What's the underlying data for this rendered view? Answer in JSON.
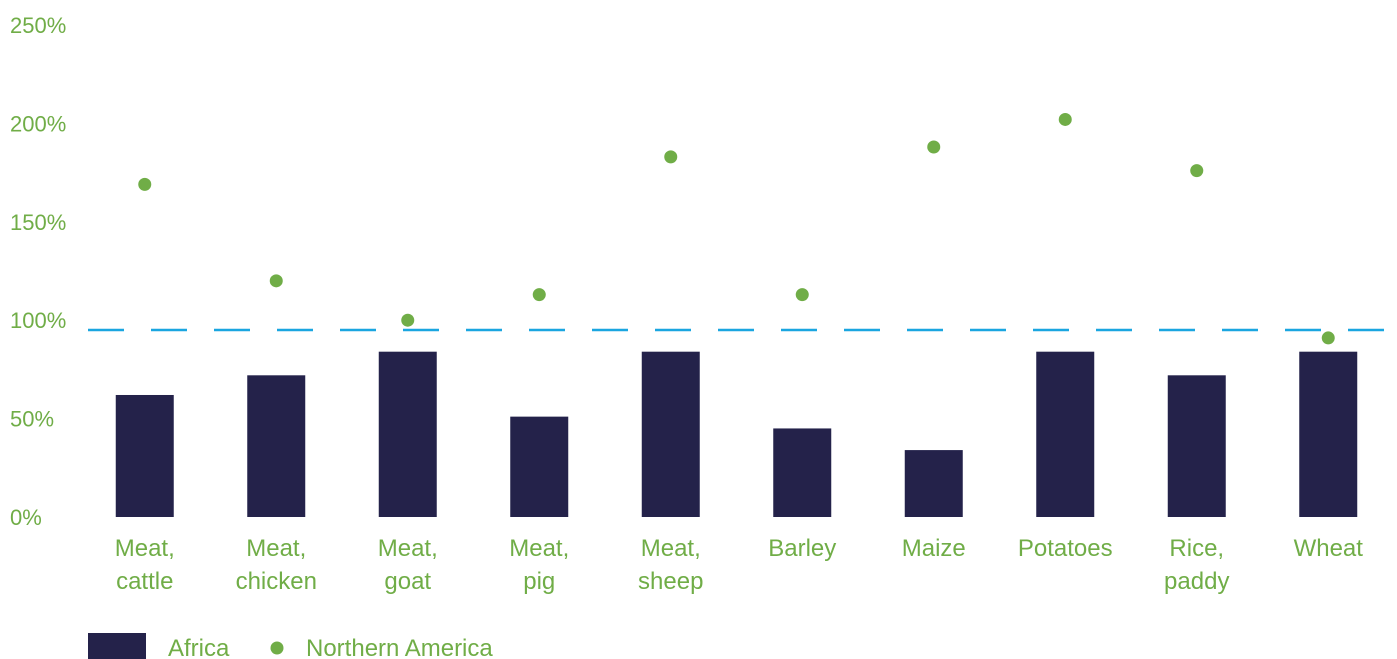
{
  "chart_data": {
    "type": "bar",
    "categories": [
      [
        "Meat,",
        "cattle"
      ],
      [
        "Meat,",
        "chicken"
      ],
      [
        "Meat,",
        "goat"
      ],
      [
        "Meat,",
        "pig"
      ],
      [
        "Meat,",
        "sheep"
      ],
      [
        "Barley"
      ],
      [
        "Maize"
      ],
      [
        "Potatoes"
      ],
      [
        "Rice,",
        "paddy"
      ],
      [
        "Wheat"
      ]
    ],
    "series": [
      {
        "name": "Africa",
        "kind": "bar",
        "color": "#24224a",
        "values": [
          0.67,
          0.77,
          0.89,
          0.56,
          0.89,
          0.5,
          0.39,
          0.89,
          0.77,
          0.89
        ]
      },
      {
        "name": "Northern America",
        "kind": "scatter",
        "color": "#70ad47",
        "values": [
          1.74,
          1.25,
          1.05,
          1.18,
          1.88,
          1.18,
          1.93,
          2.07,
          1.81,
          0.96
        ]
      }
    ],
    "reference_line": {
      "value": 1.0,
      "style": "dashed",
      "color": "#1aa6e0"
    },
    "ylim": [
      0.05,
      2.55
    ],
    "yticks": [
      {
        "value": 0.05,
        "label": "0%"
      },
      {
        "value": 0.55,
        "label": "50%"
      },
      {
        "value": 1.05,
        "label": "100%"
      },
      {
        "value": 1.55,
        "label": "150%"
      },
      {
        "value": 2.05,
        "label": "200%"
      },
      {
        "value": 2.55,
        "label": "250%"
      }
    ],
    "grid": false,
    "legend_position": "bottom-left",
    "text_color": "#70ad47"
  }
}
